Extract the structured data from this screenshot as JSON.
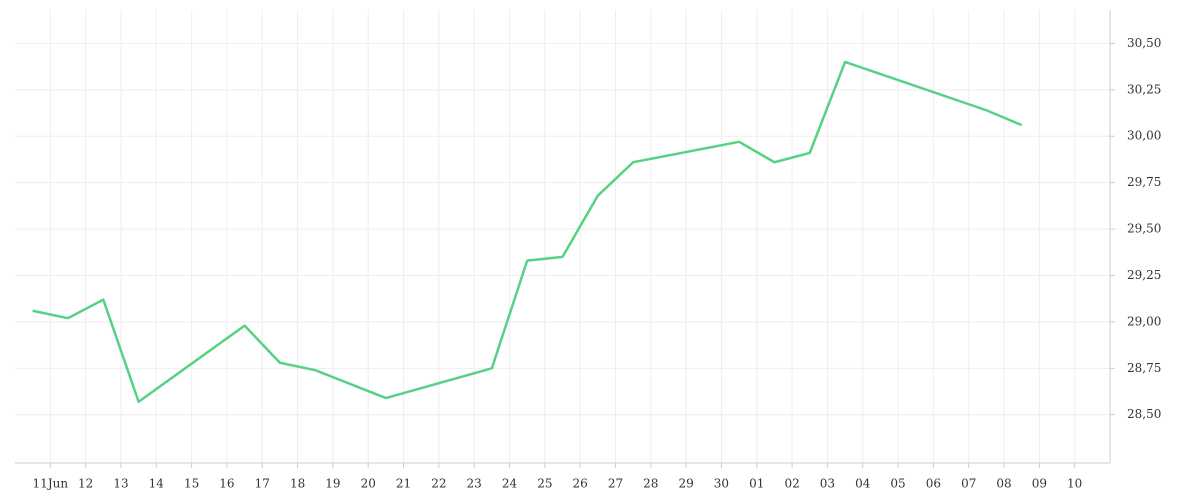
{
  "chart_data": {
    "type": "line",
    "x": [
      -0.5,
      0.5,
      1.5,
      2.5,
      5.5,
      6.5,
      7.5,
      9.5,
      12.5,
      13.5,
      14.5,
      15.5,
      16.5,
      19.5,
      20.5,
      21.5,
      22.5,
      26.5,
      27.5
    ],
    "series": [
      {
        "color": "#55d283",
        "values": [
          29.06,
          29.02,
          29.12,
          28.57,
          28.98,
          28.78,
          28.74,
          28.59,
          28.75,
          29.33,
          29.35,
          29.68,
          29.86,
          29.97,
          29.86,
          29.91,
          30.4,
          30.14,
          30.06
        ]
      }
    ],
    "xlim": [
      -1,
      30
    ],
    "xticks": [
      {
        "value": 0,
        "label": "11Jun"
      },
      {
        "value": 1,
        "label": "12"
      },
      {
        "value": 2,
        "label": "13"
      },
      {
        "value": 3,
        "label": "14"
      },
      {
        "value": 4,
        "label": "15"
      },
      {
        "value": 5,
        "label": "16"
      },
      {
        "value": 6,
        "label": "17"
      },
      {
        "value": 7,
        "label": "18"
      },
      {
        "value": 8,
        "label": "19"
      },
      {
        "value": 9,
        "label": "20"
      },
      {
        "value": 10,
        "label": "21"
      },
      {
        "value": 11,
        "label": "22"
      },
      {
        "value": 12,
        "label": "23"
      },
      {
        "value": 13,
        "label": "24"
      },
      {
        "value": 14,
        "label": "25"
      },
      {
        "value": 15,
        "label": "26"
      },
      {
        "value": 16,
        "label": "27"
      },
      {
        "value": 17,
        "label": "28"
      },
      {
        "value": 18,
        "label": "29"
      },
      {
        "value": 19,
        "label": "30"
      },
      {
        "value": 20,
        "label": "01"
      },
      {
        "value": 21,
        "label": "02"
      },
      {
        "value": 22,
        "label": "03"
      },
      {
        "value": 23,
        "label": "04"
      },
      {
        "value": 24,
        "label": "05"
      },
      {
        "value": 25,
        "label": "06"
      },
      {
        "value": 26,
        "label": "07"
      },
      {
        "value": 27,
        "label": "08"
      },
      {
        "value": 28,
        "label": "09"
      },
      {
        "value": 29,
        "label": "10"
      }
    ],
    "ylim": [
      28.24,
      30.68
    ],
    "yticks": [
      {
        "value": 28.5,
        "label": "28,50"
      },
      {
        "value": 28.75,
        "label": "28,75"
      },
      {
        "value": 29,
        "label": "29,00"
      },
      {
        "value": 29.25,
        "label": "29,25"
      },
      {
        "value": 29.5,
        "label": "29,50"
      },
      {
        "value": 29.75,
        "label": "29,75"
      },
      {
        "value": 30,
        "label": "30,00"
      },
      {
        "value": 30.25,
        "label": "30,25"
      },
      {
        "value": 30.5,
        "label": "30,50"
      }
    ],
    "grid": true
  }
}
